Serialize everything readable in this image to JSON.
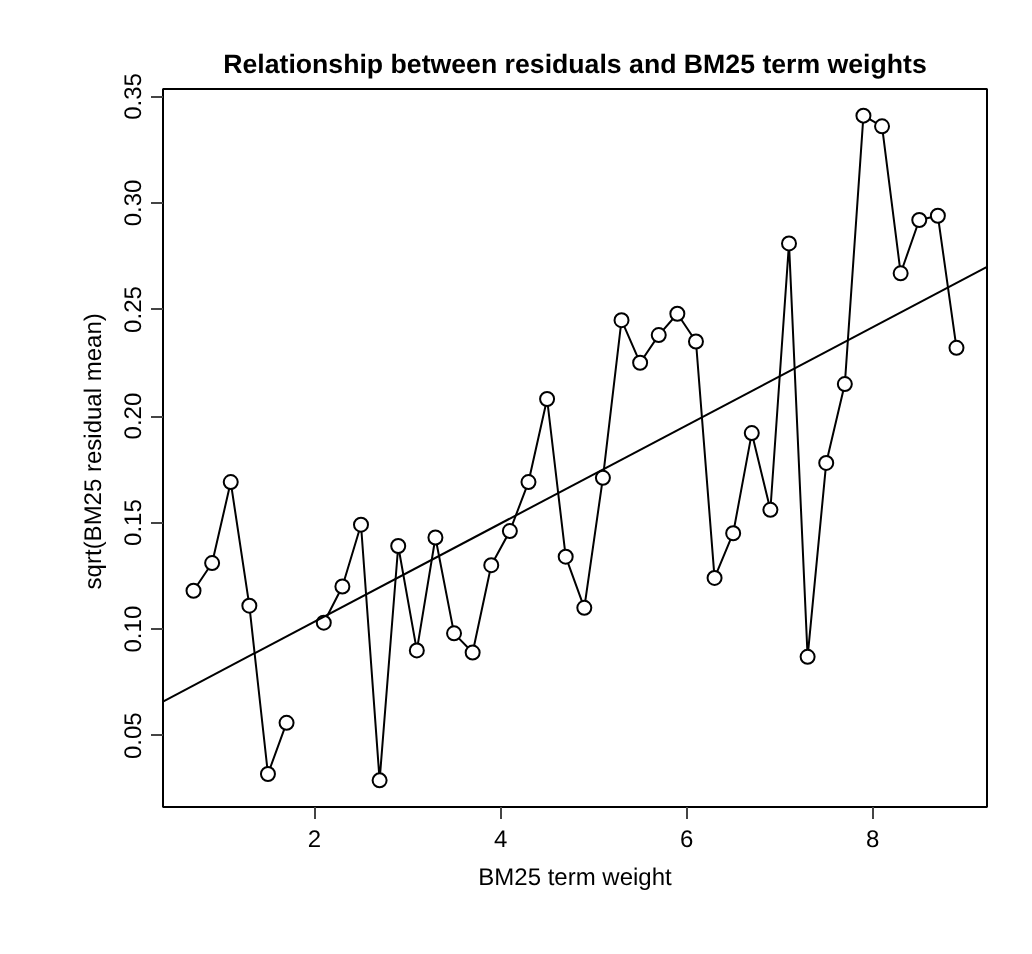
{
  "chart_data": {
    "type": "line",
    "title": "Relationship between residuals and BM25 term weights",
    "xlabel": "BM25 term weight",
    "ylabel": "sqrt(BM25 residual  mean)",
    "xlim": [
      0.372,
      9.228
    ],
    "ylim": [
      0.0165,
      0.3535
    ],
    "xticks": [
      2,
      4,
      6,
      8
    ],
    "yticks": [
      {
        "value": 0.05,
        "label": "0.05"
      },
      {
        "value": 0.1,
        "label": "0.10"
      },
      {
        "value": 0.15,
        "label": "0.15"
      },
      {
        "value": 0.2,
        "label": "0.20"
      },
      {
        "value": 0.25,
        "label": "0.25"
      },
      {
        "value": 0.3,
        "label": "0.30"
      },
      {
        "value": 0.35,
        "label": "0.35"
      }
    ],
    "grid": false,
    "series": [
      {
        "color": "#000000",
        "marker": "circle",
        "line_style": "solid",
        "x": [
          0.7,
          0.9,
          1.1,
          1.3,
          1.5,
          1.7,
          1.9,
          2.1,
          2.3,
          2.5,
          2.7,
          2.9,
          3.1,
          3.3,
          3.5,
          3.7,
          3.9,
          4.1,
          4.3,
          4.5,
          4.7,
          4.9,
          5.1,
          5.3,
          5.5,
          5.7,
          5.9,
          6.1,
          6.3,
          6.5,
          6.7,
          6.9,
          7.1,
          7.3,
          7.5,
          7.7,
          7.9,
          8.1,
          8.3,
          8.5,
          8.7,
          8.9
        ],
        "values": [
          0.118,
          0.131,
          0.169,
          0.111,
          0.032,
          0.056,
          null,
          0.103,
          0.12,
          0.149,
          0.029,
          0.139,
          0.09,
          0.143,
          0.098,
          0.089,
          0.13,
          0.146,
          0.169,
          0.208,
          0.134,
          0.11,
          0.171,
          0.245,
          0.225,
          0.238,
          0.248,
          0.235,
          0.124,
          0.145,
          0.192,
          0.156,
          0.281,
          0.087,
          0.178,
          0.215,
          0.341,
          0.336,
          0.267,
          0.292,
          0.294,
          0.232
        ]
      },
      {
        "type": "line",
        "color": "#000000",
        "marker": "none",
        "line_style": "solid",
        "x": [
          0.372,
          9.228
        ],
        "values": [
          0.066,
          0.27
        ]
      }
    ]
  }
}
